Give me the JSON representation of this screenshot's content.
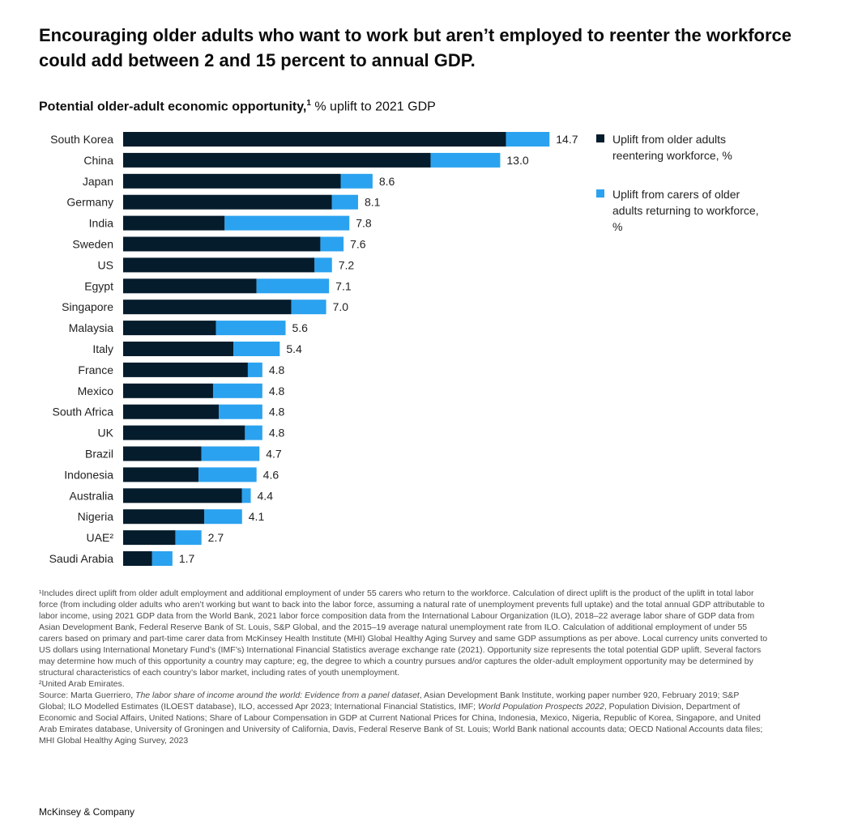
{
  "headline": "Encouraging older adults who want to work but aren’t employed to reenter the workforce could add between 2 and 15 percent to annual GDP.",
  "subtitle": {
    "bold": "Potential older-adult economic opportunity,",
    "sup": "1",
    "rest": " % uplift to 2021 GDP"
  },
  "legend": [
    {
      "label": "Uplift from older adults reentering workforce, %",
      "color": "#051c2c"
    },
    {
      "label": "Uplift from carers of older adults returning to workforce, %",
      "color": "#2aa2ef"
    }
  ],
  "chart_data": {
    "type": "bar",
    "orientation": "horizontal",
    "stacked": true,
    "title": "Potential older-adult economic opportunity,¹ % uplift to 2021 GDP",
    "xlabel": "",
    "ylabel": "",
    "xlim": [
      0,
      16
    ],
    "grid": false,
    "legend_position": "right",
    "colors": [
      "#051c2c",
      "#2aa2ef"
    ],
    "categories": [
      "South Korea",
      "China",
      "Japan",
      "Germany",
      "India",
      "Sweden",
      "US",
      "Egypt",
      "Singapore",
      "Malaysia",
      "Italy",
      "France",
      "Mexico",
      "South Africa",
      "UK",
      "Brazil",
      "Indonesia",
      "Australia",
      "Nigeria",
      "UAE²",
      "Saudi Arabia"
    ],
    "series": [
      {
        "name": "Uplift from older adults reentering workforce, %",
        "values": [
          13.2,
          10.6,
          7.5,
          7.2,
          3.5,
          6.8,
          6.6,
          4.6,
          5.8,
          3.2,
          3.8,
          4.3,
          3.1,
          3.3,
          4.2,
          2.7,
          2.6,
          4.1,
          2.8,
          1.8,
          1.0
        ]
      },
      {
        "name": "Uplift from carers of older adults returning to workforce, %",
        "values": [
          1.5,
          2.4,
          1.1,
          0.9,
          4.3,
          0.8,
          0.6,
          2.5,
          1.2,
          2.4,
          1.6,
          0.5,
          1.7,
          1.5,
          0.6,
          2.0,
          2.0,
          0.3,
          1.3,
          0.9,
          0.7
        ]
      }
    ],
    "totals": [
      "14.7",
      "13.0",
      "8.6",
      "8.1",
      "7.8",
      "7.6",
      "7.2",
      "7.1",
      "7.0",
      "5.6",
      "5.4",
      "4.8",
      "4.8",
      "4.8",
      "4.8",
      "4.7",
      "4.6",
      "4.4",
      "4.1",
      "2.7",
      "1.7"
    ]
  },
  "footnotes": {
    "note1": "¹Includes direct uplift from older adult employment and additional employment of under 55 carers who return to the workforce. Calculation of direct uplift is the product of the uplift in total labor force (from including older adults who aren’t working but want to back into the labor force, assuming a natural rate of unemployment prevents full uptake) and the total annual GDP attributable to labor income, using 2021 GDP data from the World Bank, 2021 labor force composition data from the International Labour Organization (ILO), 2018–22 average labor share of GDP data from Asian Development Bank, Federal Reserve Bank of St. Louis, S&P Global, and the 2015–19 average natural unemployment rate from ILO. Calculation of additional employment of under 55 carers based on primary and part-time carer data from McKinsey Health Institute (MHI) Global Healthy Aging Survey and same GDP assumptions as per above. Local currency units converted to US dollars using International Monetary Fund’s (IMF’s) International Financial Statistics average exchange rate (2021). Opportunity size represents the total potential GDP uplift. Several factors may determine how much of this opportunity a country may capture; eg, the degree to which a country pursues and/or captures the older-adult employment opportunity may be determined by structural characteristics of each country’s labor market, including rates of youth unemployment.",
    "note2": "²United Arab Emirates.",
    "source_a": "Source: Marta Guerriero, ",
    "source_b": "The labor share of income around the world: Evidence from a panel dataset",
    "source_c": ", Asian Development Bank Institute, working paper number 920, February 2019; S&P Global; ILO Modelled Estimates (ILOEST database), ILO, accessed Apr 2023; International Financial Statistics, IMF; ",
    "source_d": "World Population Prospects 2022",
    "source_e": ", Population Division, Department of Economic and Social Affairs, United Nations; Share of Labour Compensation in GDP at Current National Prices for China, Indonesia, Mexico, Nigeria, Republic of Korea, Singapore, and United Arab Emirates database, University of Groningen and University of California, Davis, Federal Reserve Bank of St. Louis; World Bank national accounts data; OECD National Accounts data files; MHI Global Healthy Aging Survey, 2023"
  },
  "brand": "McKinsey & Company"
}
